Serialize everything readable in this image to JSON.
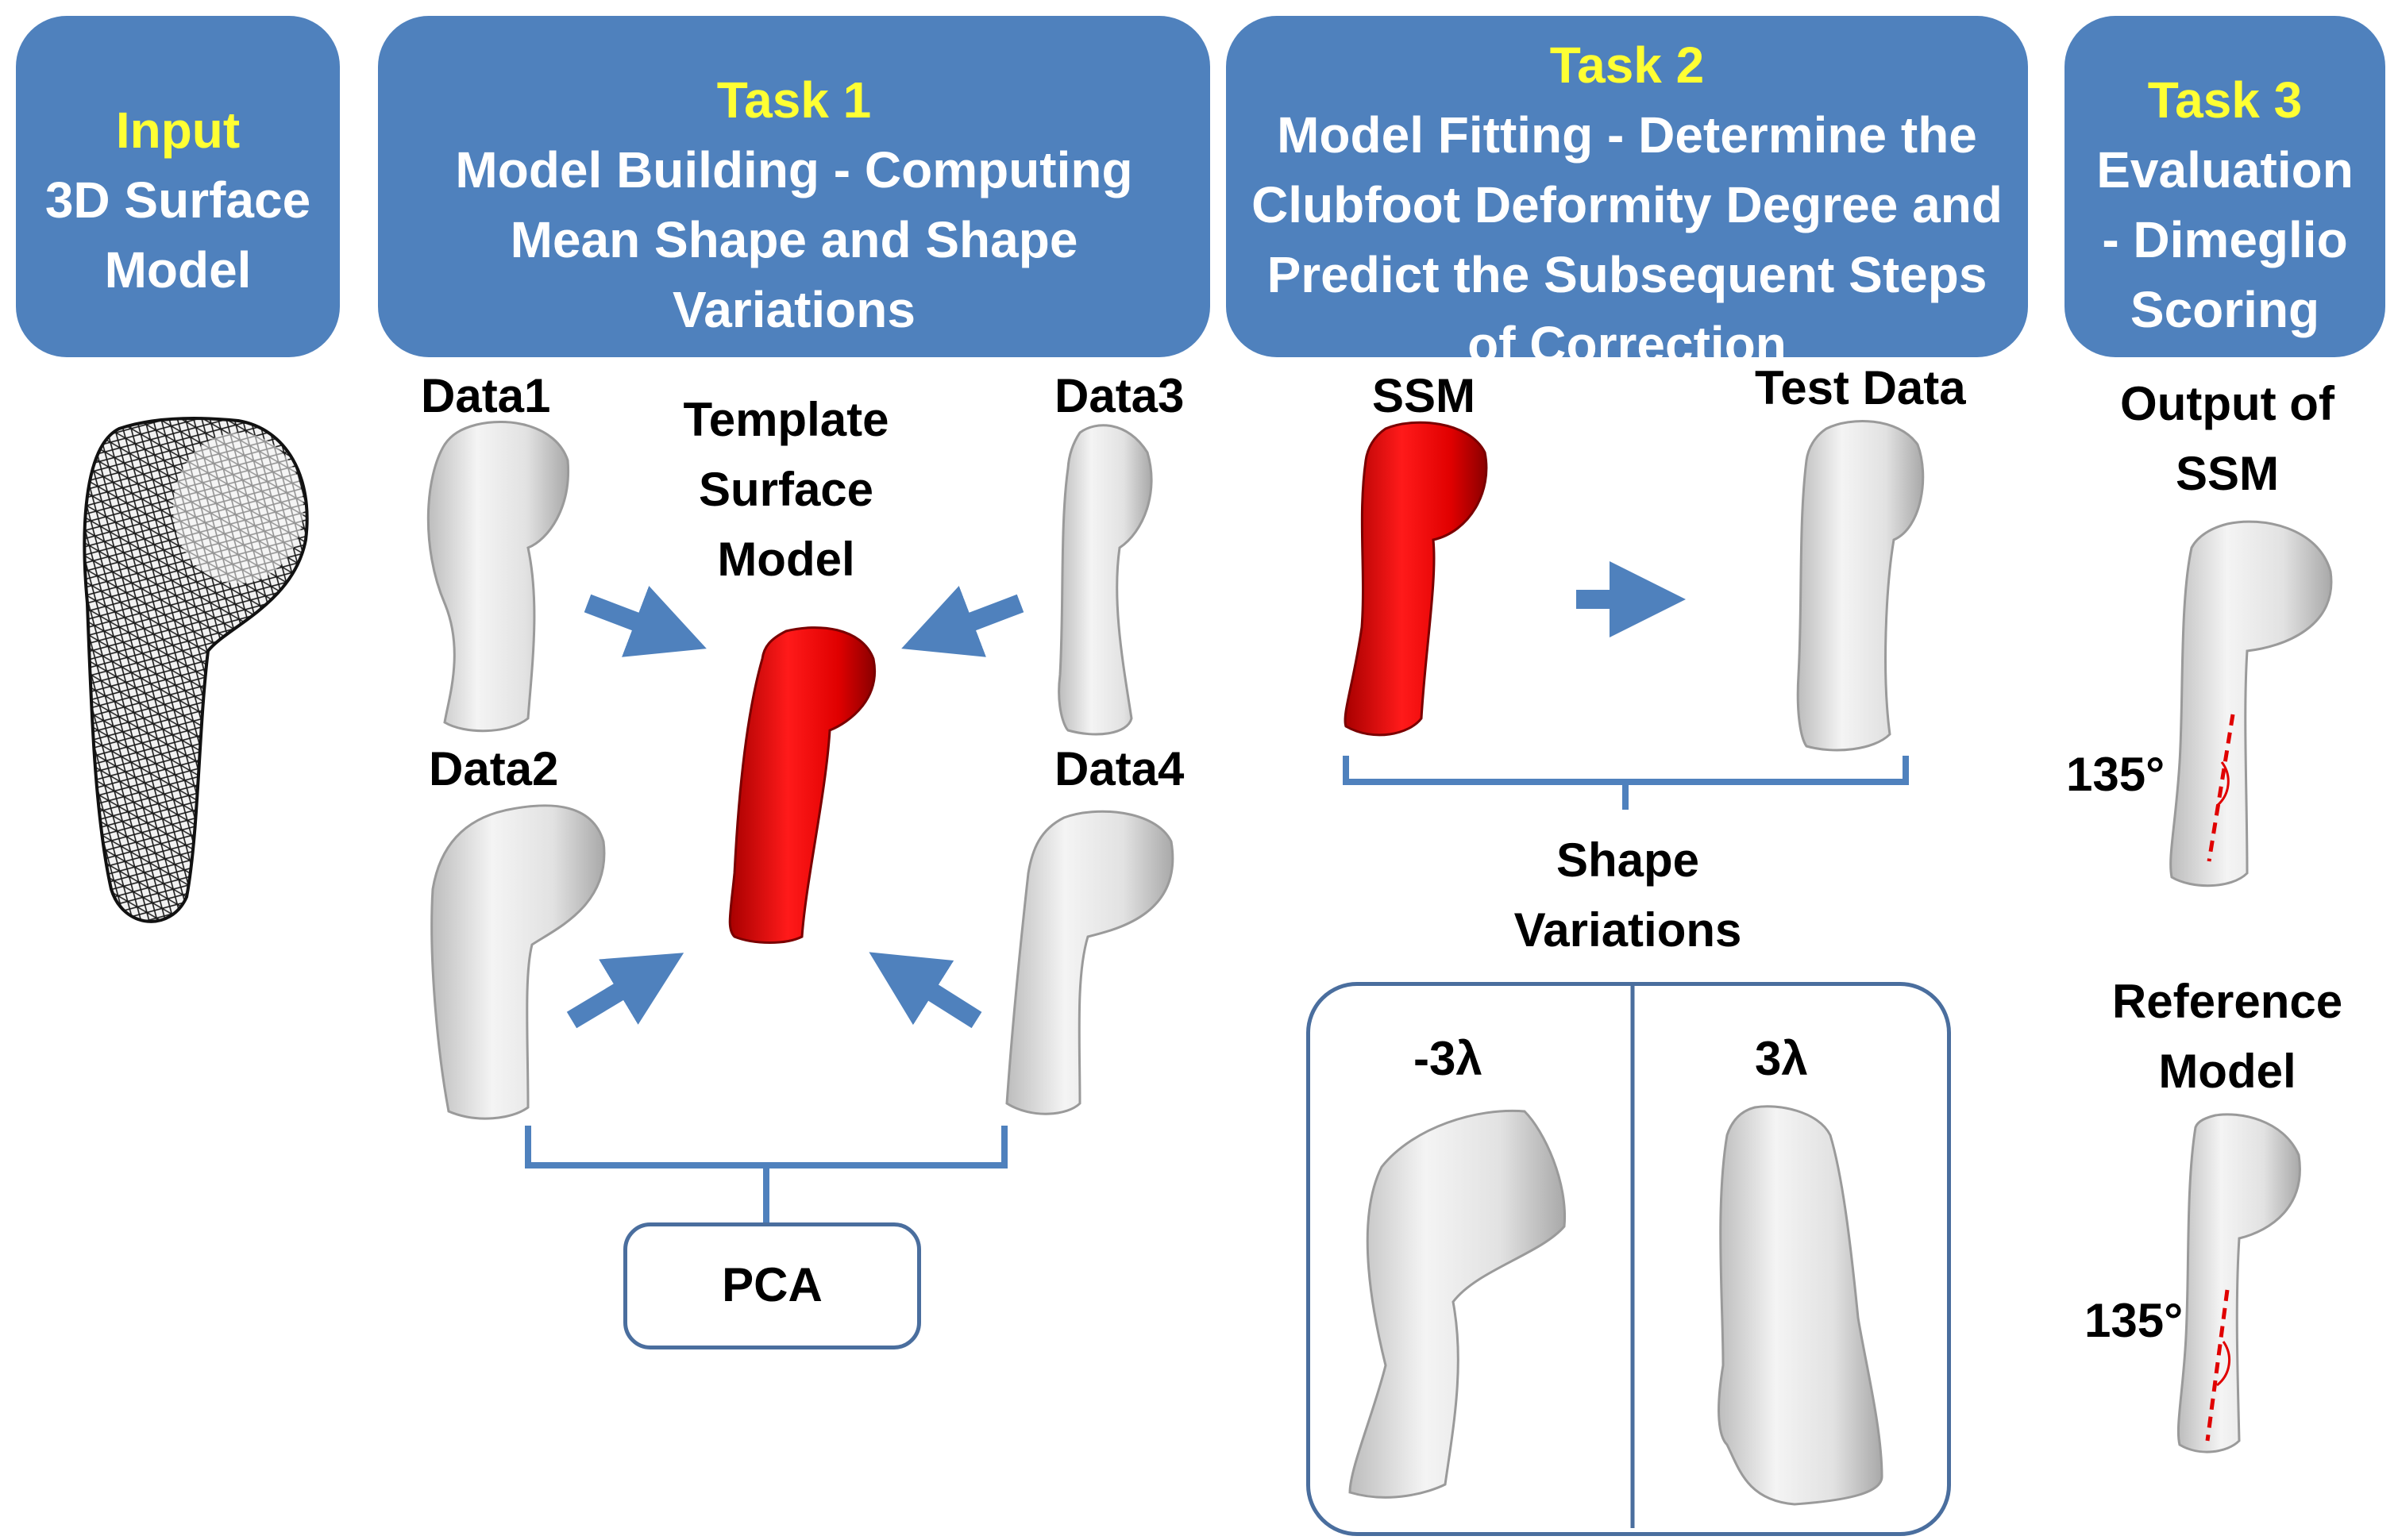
{
  "header": {
    "input": {
      "title": "Input",
      "lines": [
        "3D Surface",
        "Model"
      ]
    },
    "task1": {
      "title": "Task 1",
      "lines": [
        "Model Building - Computing",
        "Mean Shape and Shape",
        "Variations"
      ]
    },
    "task2": {
      "title": "Task 2",
      "lines": [
        "Model Fitting - Determine the",
        "Clubfoot Deformity Degree and",
        "Predict the Subsequent Steps",
        "of Correction"
      ]
    },
    "task3": {
      "title": "Task 3",
      "lines": [
        "Evaluation",
        "- Dimeglio",
        "Scoring"
      ]
    }
  },
  "task1": {
    "data1": "Data1",
    "data2": "Data2",
    "data3": "Data3",
    "data4": "Data4",
    "template": [
      "Template",
      "Surface",
      "Model"
    ],
    "pca": "PCA"
  },
  "task2": {
    "ssm": "SSM",
    "test_data": "Test Data",
    "shape_variations": [
      "Shape",
      "Variations"
    ],
    "minus": "-3λ",
    "plus": "3λ"
  },
  "task3": {
    "output": [
      "Output of",
      "SSM"
    ],
    "angle1": "135°",
    "reference": [
      "Reference",
      "Model"
    ],
    "angle2": "135°"
  },
  "colors": {
    "box_fill": "#4f81bd",
    "highlight_text": "#ffff33",
    "arrow": "#4f81bd",
    "template_model": "#e00000",
    "angle_line": "#e00000"
  },
  "icons": {
    "arrow": "arrow-icon",
    "brace": "brace-icon",
    "bone": "bone-model-icon"
  }
}
